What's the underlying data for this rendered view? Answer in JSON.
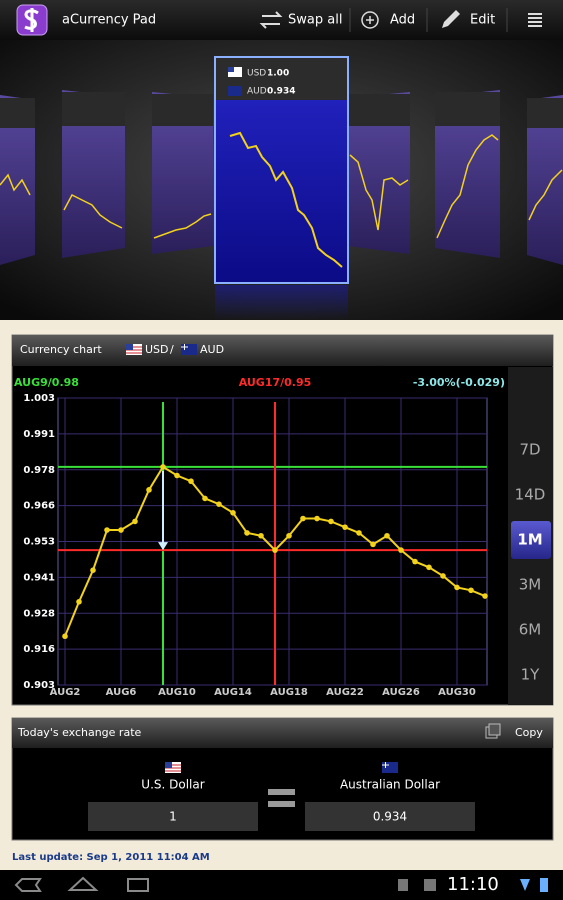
{
  "action_bar": {
    "title": "aCurrency Pad",
    "actions": [
      "Swap all",
      "Add",
      "Edit"
    ]
  },
  "carousel": {
    "active_card": {
      "rows": [
        {
          "code": "USD",
          "rate": "1.00"
        },
        {
          "code": "AUD",
          "rate": "0.934"
        }
      ]
    }
  },
  "chart_panel": {
    "title": "Currency chart",
    "pair": [
      "USD",
      "/",
      "AUD"
    ],
    "ranges": [
      "7D",
      "14D",
      "1M",
      "3M",
      "6M",
      "1Y"
    ],
    "selected_range": "1M"
  },
  "chart_data": {
    "type": "line",
    "x": [
      2,
      3,
      4,
      5,
      6,
      7,
      8,
      9,
      10,
      11,
      12,
      13,
      14,
      15,
      16,
      17,
      18,
      19,
      20,
      21,
      22,
      23,
      24,
      25,
      26,
      27,
      28,
      29,
      30,
      31,
      32
    ],
    "series": [
      {
        "color": "#f2d21b",
        "values": [
          0.92,
          0.932,
          0.943,
          0.957,
          0.957,
          0.96,
          0.971,
          0.979,
          0.976,
          0.974,
          0.968,
          0.966,
          0.963,
          0.956,
          0.955,
          0.95,
          0.955,
          0.961,
          0.961,
          0.96,
          0.958,
          0.956,
          0.952,
          0.955,
          0.95,
          0.946,
          0.944,
          0.941,
          0.937,
          0.936,
          0.934
        ]
      }
    ],
    "xlim": [
      2,
      32
    ],
    "xticks": [
      {
        "value": 2,
        "label": "AUG2"
      },
      {
        "value": 6,
        "label": "AUG6"
      },
      {
        "value": 10,
        "label": "AUG10"
      },
      {
        "value": 14,
        "label": "AUG14"
      },
      {
        "value": 18,
        "label": "AUG18"
      },
      {
        "value": 22,
        "label": "AUG22"
      },
      {
        "value": 26,
        "label": "AUG26"
      },
      {
        "value": 30,
        "label": "AUG30"
      }
    ],
    "ylim": [
      0.903,
      1.003
    ],
    "yticks": [
      0.903,
      {
        "value": 0.9155,
        "label": "0.916"
      },
      0.928,
      {
        "value": 0.9405,
        "label": "0.941"
      },
      0.953,
      {
        "value": 0.9655,
        "label": "0.966"
      },
      0.978,
      {
        "value": 0.9905,
        "label": "0.991"
      },
      1.003
    ],
    "grid": true,
    "crosshairs": [
      {
        "label": "AUG9/0.98",
        "x": 9,
        "y": 0.979,
        "color": "#3ae03a"
      },
      {
        "label": "AUG17/0.95",
        "x": 17,
        "y": 0.95,
        "color": "#ff2a2a"
      }
    ],
    "change": {
      "text": "-3.00%(-0.029)",
      "color": "#8fe6e6"
    }
  },
  "converter": {
    "title": "Today's exchange rate",
    "copy": "Copy",
    "from": {
      "name": "U.S. Dollar",
      "amount": "1"
    },
    "to": {
      "name": "Australian Dollar",
      "amount": "0.934"
    }
  },
  "last_update": "Last update: Sep 1, 2011 11:04 AM",
  "status_bar": {
    "time": "11:10"
  }
}
